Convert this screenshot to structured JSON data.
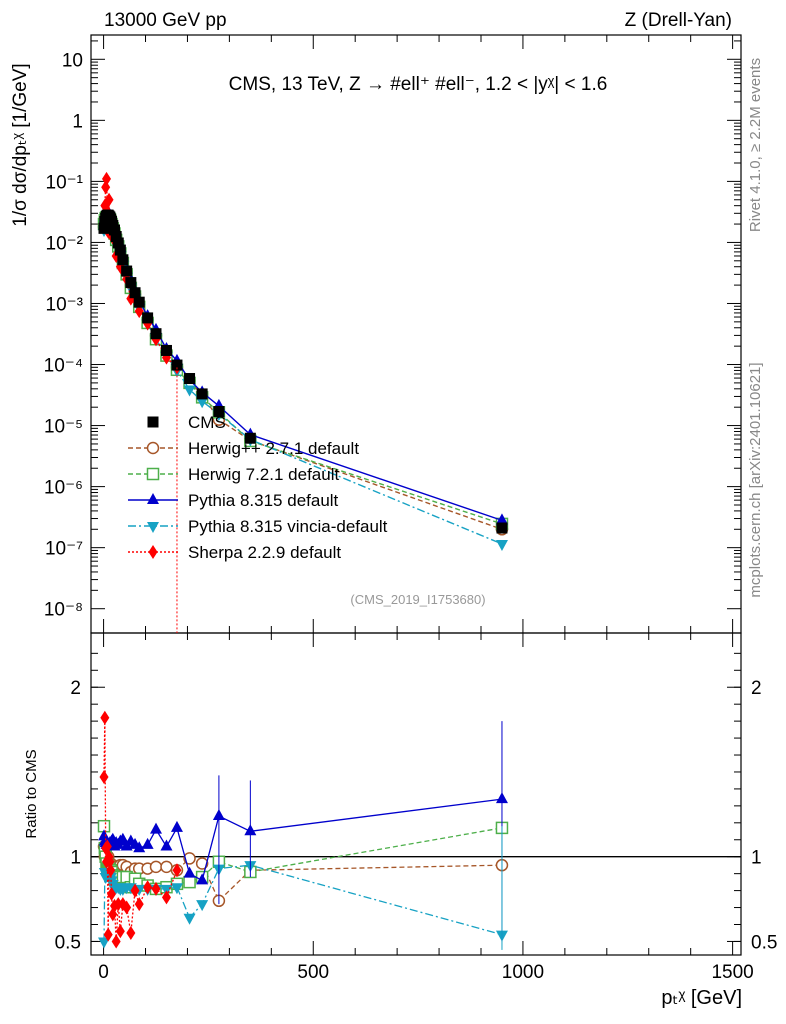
{
  "header": {
    "left": "13000 GeV pp",
    "right": "Z (Drell-Yan)"
  },
  "side_labels": {
    "rivet": "Rivet 4.1.0, ≥ 2.2M events",
    "mcplots": "mcplots.cern.ch [arXiv:2401.10621]"
  },
  "chart_data": [
    {
      "type": "line",
      "panel": "main",
      "title": "CMS, 13 TeV, Z →  #ell⁺ #ell⁻, 1.2 < |yᵡ| < 1.6",
      "ylabel": "1/σ dσ/dpₜᵡ [1/GeV]",
      "yscale": "log",
      "ylim": [
        4e-09,
        25
      ],
      "xlim": [
        -30,
        1520
      ],
      "yticks": [
        1e-08,
        1e-07,
        1e-06,
        1e-05,
        0.0001,
        0.001,
        0.01,
        0.1,
        1,
        10
      ],
      "ytick_labels": [
        "10⁻⁸",
        "10⁻⁷",
        "10⁻⁶",
        "10⁻⁵",
        "10⁻⁴",
        "10⁻³",
        "10⁻²",
        "10⁻¹",
        "1",
        "10"
      ],
      "watermark": "(CMS_2019_I1753680)",
      "x": [
        1,
        3,
        5,
        7,
        9,
        11,
        13,
        15,
        17,
        19,
        22,
        26,
        30,
        35,
        40,
        46,
        55,
        65,
        75,
        85,
        105,
        125,
        150,
        175,
        205,
        235,
        275,
        350,
        950
      ],
      "series": [
        {
          "name": "CMS",
          "color": "#000000",
          "marker": "square-filled",
          "dash": "none",
          "values": [
            0.017,
            0.022,
            0.025,
            0.027,
            0.028,
            0.028,
            0.027,
            0.026,
            0.024,
            0.022,
            0.019,
            0.016,
            0.0125,
            0.0098,
            0.0075,
            0.0052,
            0.0034,
            0.0022,
            0.0015,
            0.00105,
            0.00058,
            0.00032,
            0.00017,
            9.8e-05,
            5.9e-05,
            3.3e-05,
            1.7e-05,
            6.2e-06,
            2.1e-07
          ]
        },
        {
          "name": "Herwig++ 2.7.1 default",
          "color": "#a65628",
          "marker": "circle-open",
          "dash": "5,3",
          "values": [
            0.018,
            0.022,
            0.025,
            0.027,
            0.028,
            0.028,
            0.026,
            0.025,
            0.023,
            0.021,
            0.018,
            0.015,
            0.0118,
            0.0092,
            0.0071,
            0.0049,
            0.0032,
            0.002,
            0.0014,
            0.00098,
            0.00054,
            0.0003,
            0.00016,
            9e-05,
            5.4e-05,
            3.2e-05,
            1.25e-05,
            5.7e-06,
            2e-07
          ]
        },
        {
          "name": "Herwig 7.2.1 default",
          "color": "#4daf4a",
          "marker": "square-open",
          "dash": "5,3",
          "values": [
            0.02,
            0.023,
            0.025,
            0.026,
            0.026,
            0.026,
            0.025,
            0.024,
            0.022,
            0.02,
            0.017,
            0.014,
            0.011,
            0.0086,
            0.0066,
            0.0046,
            0.003,
            0.0018,
            0.0013,
            0.00088,
            0.00048,
            0.00026,
            0.00014,
            8.2e-05,
            5e-05,
            2.9e-05,
            1.65e-05,
            5.6e-06,
            2.45e-07
          ]
        },
        {
          "name": "Pythia 8.315 default",
          "color": "#0000cc",
          "marker": "triangle-up",
          "dash": "none",
          "values": [
            0.019,
            0.024,
            0.027,
            0.029,
            0.03,
            0.03,
            0.029,
            0.028,
            0.026,
            0.024,
            0.021,
            0.017,
            0.0135,
            0.0105,
            0.0082,
            0.0057,
            0.0036,
            0.0024,
            0.0016,
            0.0011,
            0.00062,
            0.00037,
            0.00018,
            0.000115,
            5.6e-05,
            3.5e-05,
            2.1e-05,
            7.1e-06,
            2.8e-07
          ]
        },
        {
          "name": "Pythia 8.315 vincia-default",
          "color": "#17a2c4",
          "marker": "triangle-down",
          "dash": "8,3,2,3",
          "values": [
            0.016,
            0.02,
            0.022,
            0.024,
            0.025,
            0.025,
            0.024,
            0.023,
            0.021,
            0.019,
            0.016,
            0.013,
            0.0103,
            0.008,
            0.0061,
            0.0042,
            0.0028,
            0.0018,
            0.0012,
            0.00085,
            0.00047,
            0.00026,
            0.000138,
            8e-05,
            3.9e-05,
            2.5e-05,
            1.55e-05,
            5.9e-06,
            1.15e-07
          ]
        },
        {
          "name": "Sherpa 2.2.9 default",
          "color": "#ff0000",
          "marker": "diamond",
          "dash": "2,2",
          "values": [
            0.025,
            0.04,
            0.08,
            0.11,
            0.03,
            0.015,
            0.05,
            0.02,
            0.018,
            0.016,
            0.012,
            0.011,
            0.006,
            0.006,
            0.004,
            0.0035,
            0.0025,
            0.0012,
            0.0012,
            0.00075,
            0.00047,
            0.00026,
            0.00013,
            9e-05,
            null,
            null,
            null,
            null,
            null
          ]
        }
      ]
    },
    {
      "type": "line",
      "panel": "ratio",
      "ylabel": "Ratio to CMS",
      "xlabel": "pₜᵡ [GeV]",
      "ylim": [
        0.42,
        2.32
      ],
      "xlim": [
        -30,
        1520
      ],
      "xticks": [
        0,
        500,
        1000,
        1500
      ],
      "xtick_labels": [
        "0",
        "500",
        "1000",
        "1500"
      ],
      "yticks": [
        0.5,
        1,
        2
      ],
      "ytick_labels": [
        "0.5",
        "1",
        "2"
      ],
      "x": [
        1,
        3,
        5,
        7,
        9,
        11,
        13,
        15,
        17,
        19,
        22,
        26,
        30,
        35,
        40,
        46,
        55,
        65,
        75,
        85,
        105,
        125,
        150,
        175,
        205,
        235,
        275,
        350,
        950
      ],
      "series": [
        {
          "name": "Herwig++ 2.7.1 default",
          "color": "#a65628",
          "values": [
            1.06,
            1.0,
            1.0,
            1.0,
            1.0,
            1.0,
            0.96,
            0.96,
            0.96,
            0.95,
            0.95,
            0.94,
            0.94,
            0.94,
            0.95,
            0.95,
            0.94,
            0.91,
            0.93,
            0.93,
            0.93,
            0.94,
            0.94,
            0.92,
            0.99,
            0.96,
            0.74,
            0.92,
            0.95
          ]
        },
        {
          "name": "Herwig 7.2.1 default",
          "color": "#4daf4a",
          "values": [
            1.18,
            1.05,
            1.0,
            0.96,
            0.93,
            0.93,
            0.93,
            0.92,
            0.92,
            0.91,
            0.89,
            0.88,
            0.88,
            0.88,
            0.88,
            0.88,
            0.88,
            0.82,
            0.87,
            0.84,
            0.83,
            0.81,
            0.82,
            0.84,
            0.85,
            0.88,
            0.97,
            0.91,
            1.17
          ]
        },
        {
          "name": "Pythia 8.315 default",
          "color": "#0000cc",
          "values": [
            1.12,
            1.09,
            1.08,
            1.07,
            1.07,
            1.07,
            1.07,
            1.08,
            1.08,
            1.09,
            1.1,
            1.06,
            1.08,
            1.07,
            1.09,
            1.1,
            1.06,
            1.09,
            1.07,
            1.05,
            1.07,
            1.16,
            1.06,
            1.17,
            0.9,
            0.86,
            1.24,
            1.15,
            1.34
          ]
        },
        {
          "name": "Pythia 8.315 vincia-default",
          "color": "#17a2c4",
          "values": [
            0.5,
            0.91,
            0.88,
            0.89,
            0.89,
            0.89,
            0.89,
            0.88,
            0.88,
            0.86,
            0.84,
            0.81,
            0.82,
            0.82,
            0.81,
            0.81,
            0.82,
            0.82,
            0.8,
            0.81,
            0.81,
            0.81,
            0.81,
            0.82,
            0.64,
            0.72,
            0.93,
            0.95,
            0.54
          ]
        },
        {
          "name": "Sherpa 2.2.9 default",
          "color": "#ff0000",
          "values": [
            1.47,
            1.82,
            1.05,
            0.97,
            1.06,
            0.54,
            1.0,
            0.97,
            0.92,
            0.78,
            0.66,
            0.71,
            0.5,
            0.72,
            0.56,
            0.72,
            0.7,
            0.55,
            0.8,
            0.72,
            0.82,
            0.81,
            0.76,
            0.92,
            null,
            null,
            null,
            null,
            null
          ]
        }
      ]
    }
  ]
}
